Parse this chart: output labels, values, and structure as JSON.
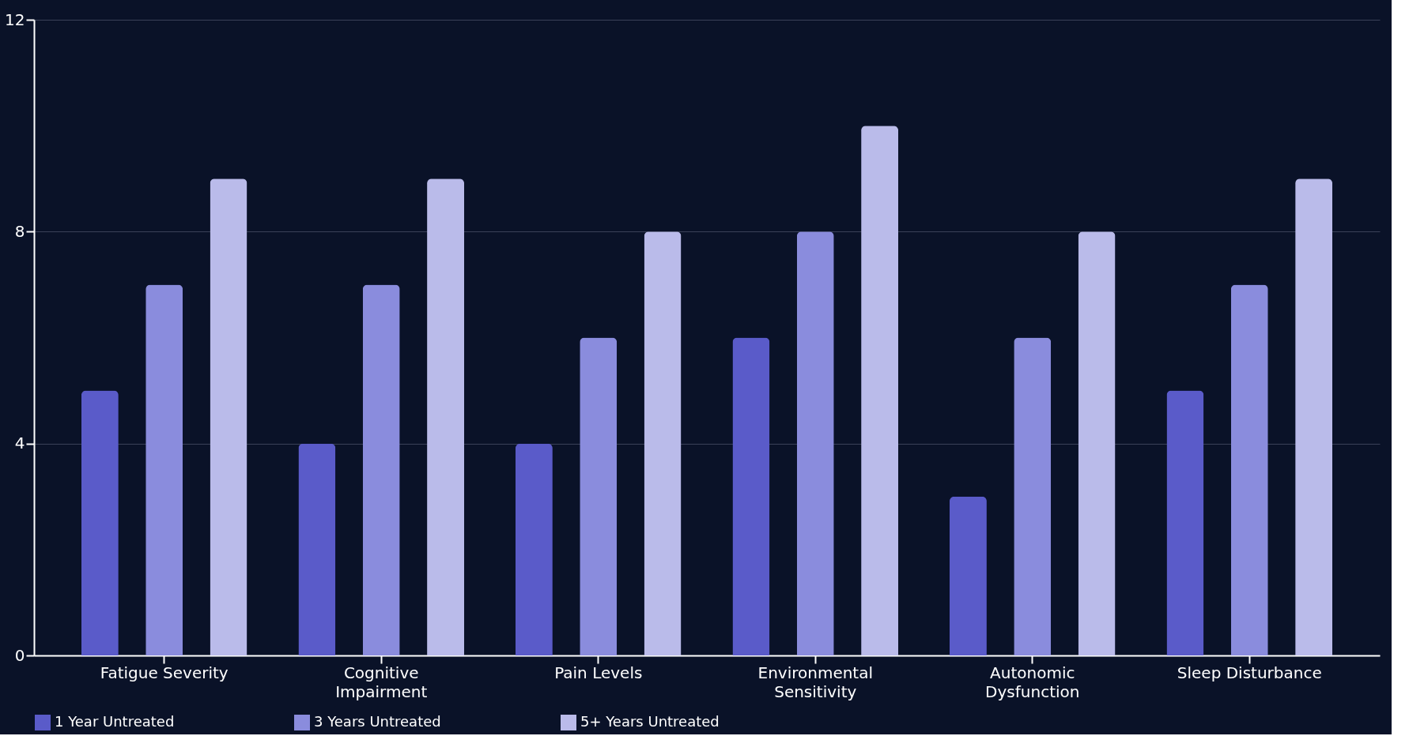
{
  "chart_data": {
    "type": "bar",
    "categories": [
      "Fatigue Severity",
      "Cognitive Impairment",
      "Pain Levels",
      "Environmental Sensitivity",
      "Autonomic Dysfunction",
      "Sleep Disturbance"
    ],
    "series": [
      {
        "name": "1 Year Untreated",
        "color": "#5a5bc9",
        "values": [
          5,
          4,
          4,
          6,
          3,
          5
        ]
      },
      {
        "name": "3 Years Untreated",
        "color": "#8a8cdd",
        "values": [
          7,
          7,
          6,
          8,
          6,
          7
        ]
      },
      {
        "name": "5+ Years Untreated",
        "color": "#babbea",
        "values": [
          9,
          9,
          8,
          10,
          8,
          9
        ]
      }
    ],
    "ylim": [
      0,
      12
    ],
    "yticks": [
      0,
      4,
      8,
      12
    ],
    "grid": "y",
    "legend": "bottom"
  }
}
